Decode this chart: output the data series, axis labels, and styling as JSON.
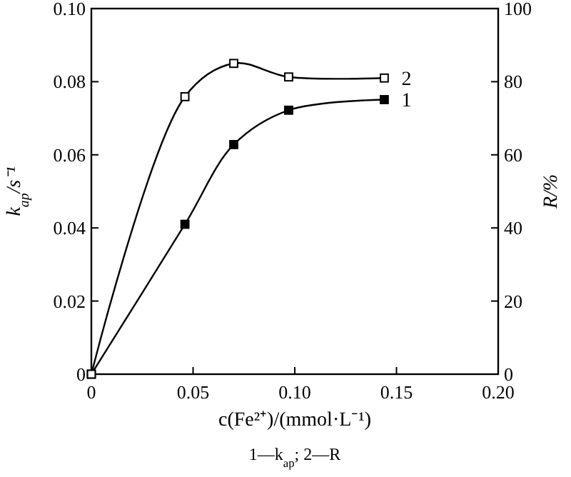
{
  "chart_data": {
    "type": "line",
    "xlabel": "c(Fe²⁺)/(mmol·L⁻¹)",
    "ylabel": "k$_{ap}$/s⁻¹",
    "y2label": "R/%",
    "xlim": [
      0,
      0.2
    ],
    "xticks": [
      0,
      0.05,
      {
        "value": 0.1,
        "label": "0.10"
      },
      0.15,
      {
        "value": 0.2,
        "label": "0.20"
      }
    ],
    "ylim": [
      0,
      0.1
    ],
    "yticks": [
      0,
      0.02,
      0.04,
      0.06,
      0.08,
      {
        "value": 0.1,
        "label": "0.10"
      }
    ],
    "y2lim": [
      0,
      100
    ],
    "y2ticks": [
      0,
      20,
      40,
      60,
      80,
      100
    ],
    "x": [
      0,
      0.046,
      0.07,
      0.097,
      0.144
    ],
    "series": [
      {
        "name": "1",
        "color": "#000000",
        "values": [
          0,
          0.041,
          0.0628,
          0.0722,
          0.0751
        ]
      },
      {
        "name": "2",
        "color": "#000000",
        "axis": "y2",
        "values": [
          0,
          75.9,
          85,
          81.3,
          81
        ]
      }
    ],
    "marker": "square",
    "line_style": "solid",
    "grid": false,
    "annotations": [
      "1—k$_{ap}$; 2—R"
    ]
  }
}
